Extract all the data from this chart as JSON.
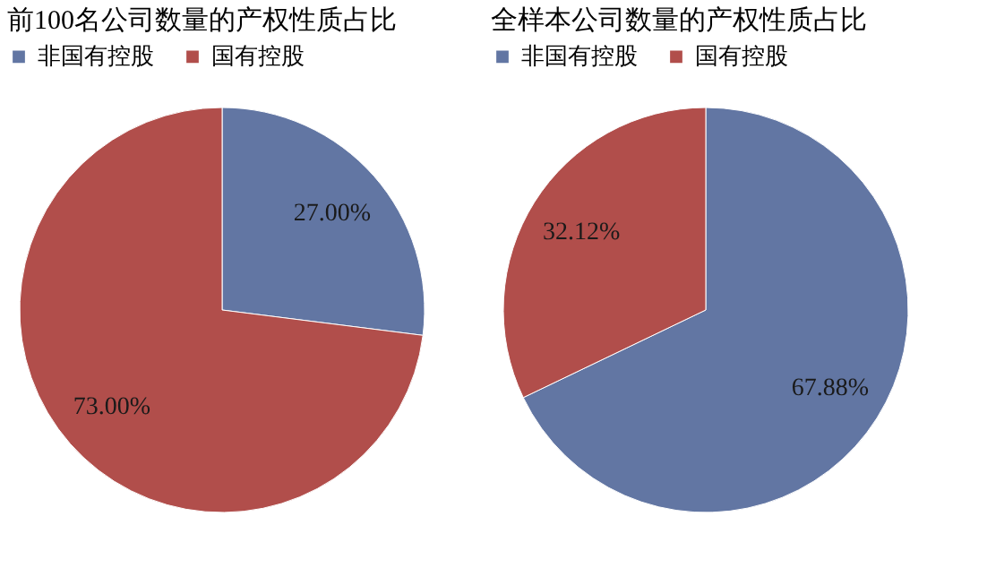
{
  "chart_data": [
    {
      "type": "pie",
      "title": "前100名公司数量的产权性质占比",
      "categories": [
        "非国有控股",
        "国有控股"
      ],
      "values": [
        27.0,
        73.0
      ],
      "colors": [
        "#6276a3",
        "#b14e4b"
      ],
      "value_labels": [
        "27.00%",
        "73.00%"
      ],
      "legend": "top left"
    },
    {
      "type": "pie",
      "title": "全样本公司数量的产权性质占比",
      "categories": [
        "非国有控股",
        "国有控股"
      ],
      "values": [
        67.88,
        32.12
      ],
      "colors": [
        "#6276a3",
        "#b14e4b"
      ],
      "value_labels": [
        "67.88%",
        "32.12%"
      ],
      "legend": "top left"
    }
  ]
}
